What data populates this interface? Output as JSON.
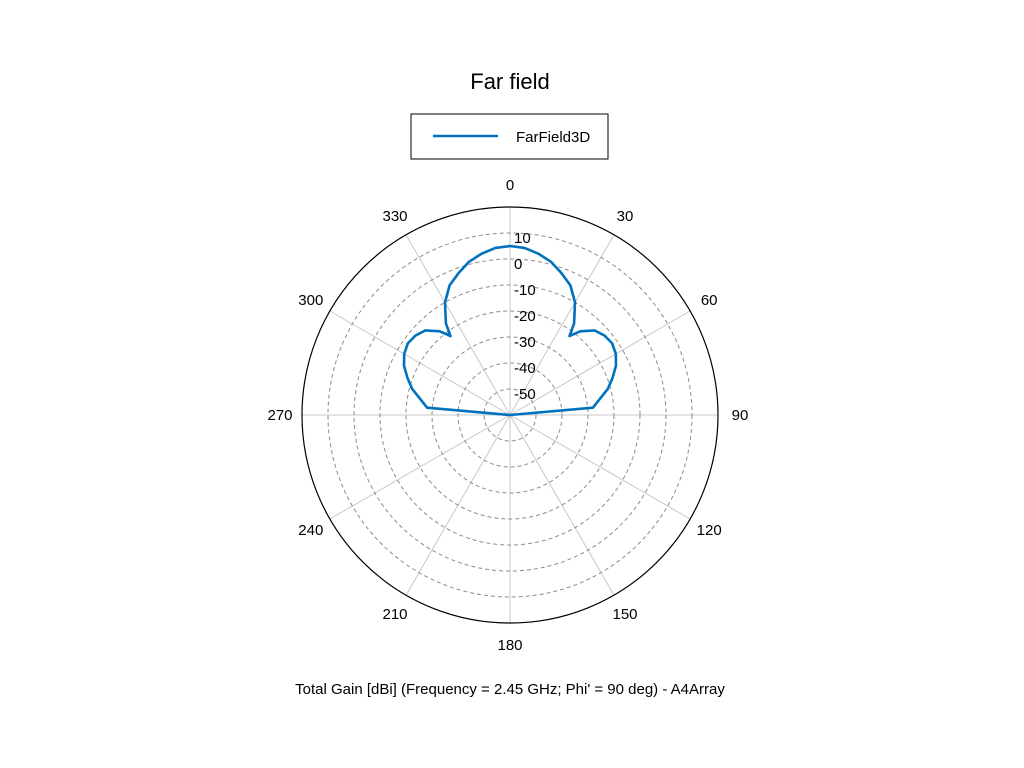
{
  "chart_data": {
    "type": "polar-line",
    "title": "Far field",
    "caption": "Total Gain [dBi] (Frequency = 2.45 GHz; Phi' = 90 deg) - A4Array",
    "legend": {
      "entries": [
        "FarField3D"
      ],
      "placement": "top-center"
    },
    "angle_unit": "deg",
    "angle_direction": "clockwise",
    "angle_zero": "top",
    "angle_ticks": [
      0,
      30,
      60,
      90,
      120,
      150,
      180,
      210,
      240,
      270,
      300,
      330
    ],
    "radial_ticks": [
      10,
      0,
      -10,
      -20,
      -30,
      -40,
      -50
    ],
    "rlim": [
      -60,
      20
    ],
    "grid": true,
    "series": [
      {
        "name": "FarField3D",
        "color": "#0072bd",
        "theta": [
          -90,
          -85,
          -80,
          -75,
          -70,
          -65,
          -60,
          -55,
          -50,
          -45,
          -40,
          -37,
          -35,
          -30,
          -25,
          -20,
          -15,
          -10,
          -5,
          0,
          5,
          10,
          15,
          20,
          25,
          30,
          35,
          37,
          40,
          45,
          50,
          55,
          60,
          65,
          70,
          75,
          80,
          85,
          90
        ],
        "r": [
          -60,
          -28,
          -25,
          -21,
          -18,
          -15,
          -13,
          -12,
          -12.5,
          -14,
          -18,
          -22,
          -17,
          -10,
          -5,
          -2,
          1,
          3,
          4.5,
          5,
          4.5,
          3,
          1,
          -2,
          -5,
          -10,
          -17,
          -22,
          -18,
          -14,
          -12.5,
          -12,
          -13,
          -15,
          -18,
          -21,
          -25,
          -28,
          -60
        ]
      }
    ]
  }
}
